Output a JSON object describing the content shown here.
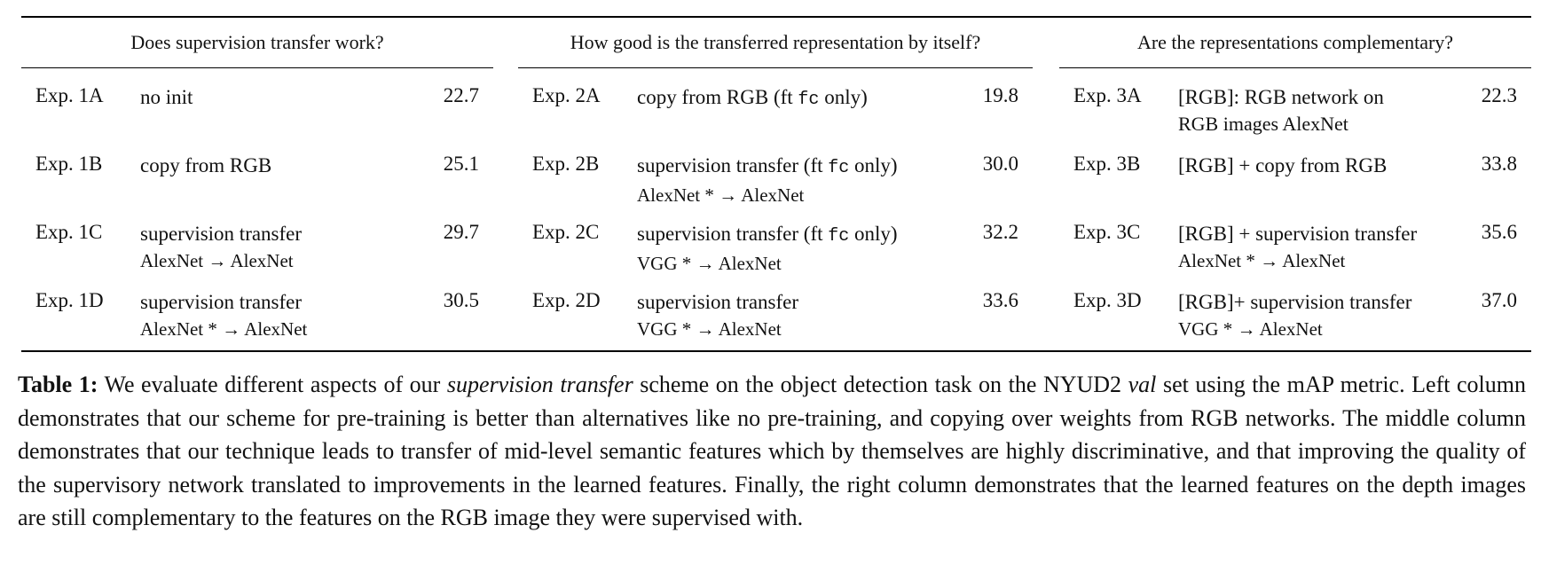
{
  "table": {
    "columns": [
      {
        "header": "Does supervision transfer work?",
        "rows": [
          {
            "exp": "Exp. 1A",
            "method": [
              "no init"
            ],
            "score": "22.7"
          },
          {
            "exp": "Exp. 1B",
            "method": [
              "copy from RGB"
            ],
            "score": "25.1"
          },
          {
            "exp": "Exp. 1C",
            "method": [
              "supervision transfer",
              "AlexNet → AlexNet"
            ],
            "score": "29.7"
          },
          {
            "exp": "Exp. 1D",
            "method": [
              "supervision transfer",
              "AlexNet * → AlexNet"
            ],
            "score": "30.5"
          }
        ]
      },
      {
        "header": "How good is the transferred representation by itself?",
        "rows": [
          {
            "exp": "Exp. 2A",
            "method": [
              "copy from RGB (ft fc only)"
            ],
            "score": "19.8"
          },
          {
            "exp": "Exp. 2B",
            "method": [
              "supervision transfer (ft fc only)",
              "AlexNet * → AlexNet"
            ],
            "score": "30.0"
          },
          {
            "exp": "Exp. 2C",
            "method": [
              "supervision transfer (ft fc only)",
              "VGG * → AlexNet"
            ],
            "score": "32.2"
          },
          {
            "exp": "Exp. 2D",
            "method": [
              "supervision transfer",
              "VGG * → AlexNet"
            ],
            "score": "33.6"
          }
        ]
      },
      {
        "header": "Are the representations complementary?",
        "rows": [
          {
            "exp": "Exp. 3A",
            "method": [
              "[RGB]: RGB network on",
              "RGB images AlexNet"
            ],
            "score": "22.3"
          },
          {
            "exp": "Exp. 3B",
            "method": [
              "[RGB] + copy from RGB"
            ],
            "score": "33.8"
          },
          {
            "exp": "Exp. 3C",
            "method": [
              "[RGB] + supervision transfer",
              "AlexNet * → AlexNet"
            ],
            "score": "35.6"
          },
          {
            "exp": "Exp. 3D",
            "method": [
              "[RGB]+ supervision transfer",
              "VGG * → AlexNet"
            ],
            "score": "37.0"
          }
        ]
      }
    ]
  },
  "caption": {
    "label": "Table 1:",
    "p1": " We evaluate different aspects of our ",
    "em1": "supervision transfer",
    "p2": " scheme on the object detection task on the NYUD2 ",
    "em2": "val",
    "p3": " set using the mAP metric. Left column demonstrates that our scheme for pre-training is better than alternatives like no pre-training, and copying over weights from RGB networks. The middle column demonstrates that our technique leads to transfer of mid-level semantic features which by themselves are highly discriminative, and that improving the quality of the supervisory network translated to improvements in the learned features. Finally, the right column demonstrates that the learned features on the depth images are still complementary to the features on the RGB image they were supervised with."
  }
}
